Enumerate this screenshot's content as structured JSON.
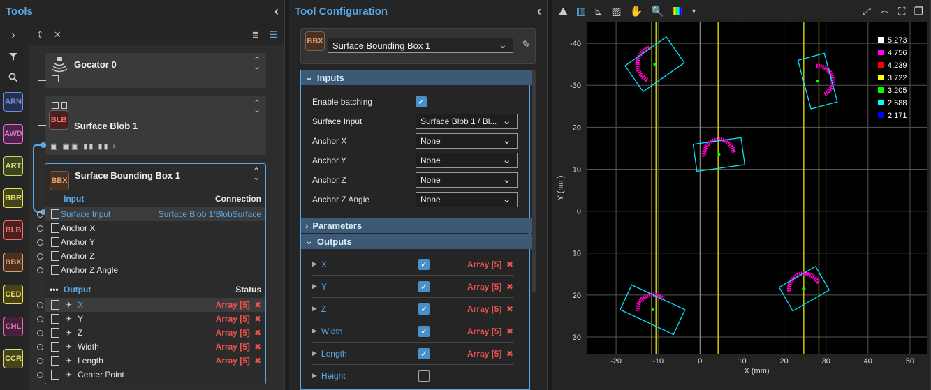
{
  "tools": {
    "title": "Tools",
    "side_badges": [
      {
        "label": "ARN",
        "color": "#6e8bd8",
        "bg": "#23304f"
      },
      {
        "label": "AWD",
        "color": "#e070d0",
        "bg": "#4a2346"
      },
      {
        "label": "ART",
        "color": "#c9d86e",
        "bg": "#3c4323"
      },
      {
        "label": "BBR",
        "color": "#e8e85a",
        "bg": "#44431f"
      },
      {
        "label": "BLB",
        "color": "#f07070",
        "bg": "#4a1f1f"
      },
      {
        "label": "BBX",
        "color": "#e0a070",
        "bg": "#4a301f"
      },
      {
        "label": "CED",
        "color": "#f0e050",
        "bg": "#46421e"
      },
      {
        "label": "CHL",
        "color": "#e070b0",
        "bg": "#45203a"
      },
      {
        "label": "CCR",
        "color": "#e0e070",
        "bg": "#45421e"
      }
    ],
    "nodes": {
      "gocator": "Gocator 0",
      "blob": {
        "badge": "BLB",
        "name": "Surface Blob 1"
      },
      "bbox": {
        "badge": "BBX",
        "name": "Surface Bounding Box 1"
      }
    },
    "input_header": "Input",
    "connection_header": "Connection",
    "inputs": [
      {
        "name": "Surface Input",
        "connection": "Surface Blob 1/BlobSurface"
      },
      {
        "name": "Anchor X",
        "connection": ""
      },
      {
        "name": "Anchor Y",
        "connection": ""
      },
      {
        "name": "Anchor Z",
        "connection": ""
      },
      {
        "name": "Anchor Z Angle",
        "connection": ""
      }
    ],
    "output_header": "Output",
    "status_header": "Status",
    "outputs": [
      {
        "name": "X",
        "status": "Array [5]"
      },
      {
        "name": "Y",
        "status": "Array [5]"
      },
      {
        "name": "Z",
        "status": "Array [5]"
      },
      {
        "name": "Width",
        "status": "Array [5]"
      },
      {
        "name": "Length",
        "status": "Array [5]"
      },
      {
        "name": "Center Point",
        "status": ""
      }
    ]
  },
  "config": {
    "title": "Tool Configuration",
    "badge": "BBX",
    "tool_name": "Surface Bounding Box 1",
    "inputs_section": "Inputs",
    "fields": [
      {
        "label": "Enable batching",
        "type": "checkbox",
        "value": ""
      },
      {
        "label": "Surface Input",
        "type": "select",
        "value": "Surface Blob 1 / Bl..."
      },
      {
        "label": "Anchor X",
        "type": "select",
        "value": "None"
      },
      {
        "label": "Anchor Y",
        "type": "select",
        "value": "None"
      },
      {
        "label": "Anchor Z",
        "type": "select",
        "value": "None"
      },
      {
        "label": "Anchor Z Angle",
        "type": "select",
        "value": "None"
      }
    ],
    "parameters_section": "Parameters",
    "outputs_section": "Outputs",
    "outputs": [
      {
        "name": "X",
        "checked": true,
        "status": "Array [5]"
      },
      {
        "name": "Y",
        "checked": true,
        "status": "Array [5]"
      },
      {
        "name": "Z",
        "checked": true,
        "status": "Array [5]"
      },
      {
        "name": "Width",
        "checked": true,
        "status": "Array [5]"
      },
      {
        "name": "Length",
        "checked": true,
        "status": "Array [5]"
      },
      {
        "name": "Height",
        "checked": false,
        "status": ""
      }
    ]
  },
  "chart_data": {
    "type": "scatter",
    "xlabel": "X (mm)",
    "ylabel": "Y (mm)",
    "xlim": [
      -27,
      54
    ],
    "ylim": [
      -45,
      34
    ],
    "y_inverted": true,
    "xticks": [
      -20,
      -10,
      0,
      10,
      20,
      30,
      40,
      50
    ],
    "yticks": [
      -40,
      -30,
      -20,
      -10,
      0,
      10,
      20,
      30
    ],
    "grid": true,
    "legend_position": "top-right",
    "legend": [
      {
        "value": "5.273",
        "color": "#ffffff"
      },
      {
        "value": "4.756",
        "color": "#ff00ff"
      },
      {
        "value": "4.239",
        "color": "#ff0000"
      },
      {
        "value": "3.722",
        "color": "#ffff00"
      },
      {
        "value": "3.205",
        "color": "#00ff00"
      },
      {
        "value": "2.688",
        "color": "#00ffff"
      },
      {
        "value": "2.171",
        "color": "#0000ff"
      }
    ],
    "vertical_lines_x": [
      -11.5,
      -10.5,
      4.3,
      24.7,
      28.3
    ],
    "blobs": [
      {
        "cx": -10.8,
        "cy": -35,
        "w": 12,
        "h": 7.5,
        "angle": 35,
        "arc_start": 150,
        "arc_end": 290
      },
      {
        "cx": 28.0,
        "cy": -31,
        "w": 6.5,
        "h": 12,
        "angle": 15,
        "arc_start": -80,
        "arc_end": 80
      },
      {
        "cx": 4.5,
        "cy": -13.5,
        "w": 11.5,
        "h": 6.5,
        "angle": 8,
        "arc_start": 180,
        "arc_end": 360
      },
      {
        "cx": -11.3,
        "cy": 23.5,
        "w": 14,
        "h": 6.5,
        "angle": -25,
        "arc_start": 150,
        "arc_end": 290
      },
      {
        "cx": 24.8,
        "cy": 18.5,
        "w": 10,
        "h": 6.5,
        "angle": 30,
        "arc_start": 200,
        "arc_end": 370
      }
    ]
  }
}
